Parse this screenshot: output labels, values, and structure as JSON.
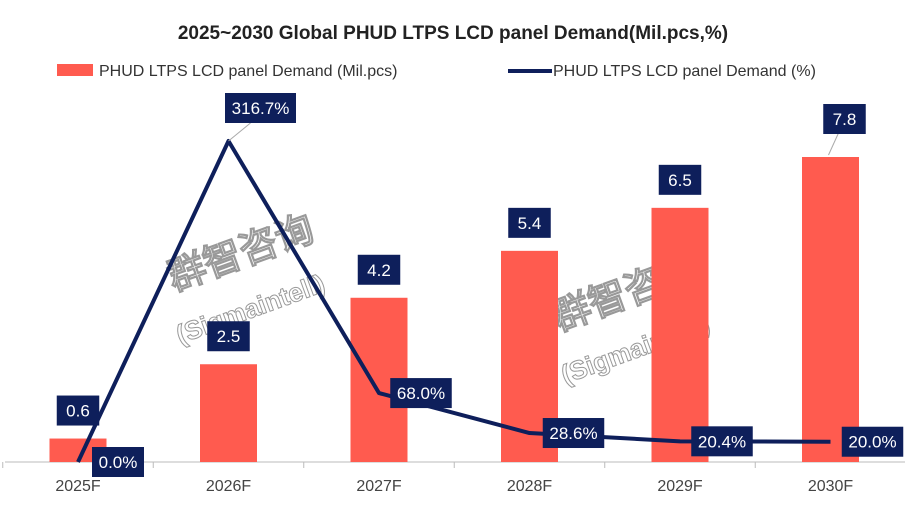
{
  "chart_data": {
    "type": "bar+line",
    "title": "2025~2030 Global PHUD LTPS LCD panel Demand(Mil.pcs,%)",
    "categories": [
      "2025F",
      "2026F",
      "2027F",
      "2028F",
      "2029F",
      "2030F"
    ],
    "series": [
      {
        "name": "PHUD LTPS LCD panel Demand (Mil.pcs)",
        "type": "bar",
        "values": [
          0.6,
          2.5,
          4.2,
          5.4,
          6.5,
          7.8
        ],
        "labels": [
          "0.6",
          "2.5",
          "4.2",
          "5.4",
          "6.5",
          "7.8"
        ],
        "color": "#FF5B4F"
      },
      {
        "name": "PHUD LTPS LCD panel Demand (%)",
        "type": "line",
        "values": [
          0.0,
          316.7,
          68.0,
          28.6,
          20.4,
          20.0
        ],
        "labels": [
          "0.0%",
          "316.7%",
          "68.0%",
          "28.6%",
          "20.4%",
          "20.0%"
        ],
        "color": "#0E1F5B"
      }
    ],
    "ylim_left": [
      0,
      7.8
    ],
    "ylim_right": [
      0,
      316.7
    ],
    "grid": false,
    "legend": "top",
    "label_box_color": "#0E1F5B"
  },
  "watermark": {
    "line1": "群智咨询",
    "line2": "(Sigmaintell)"
  }
}
